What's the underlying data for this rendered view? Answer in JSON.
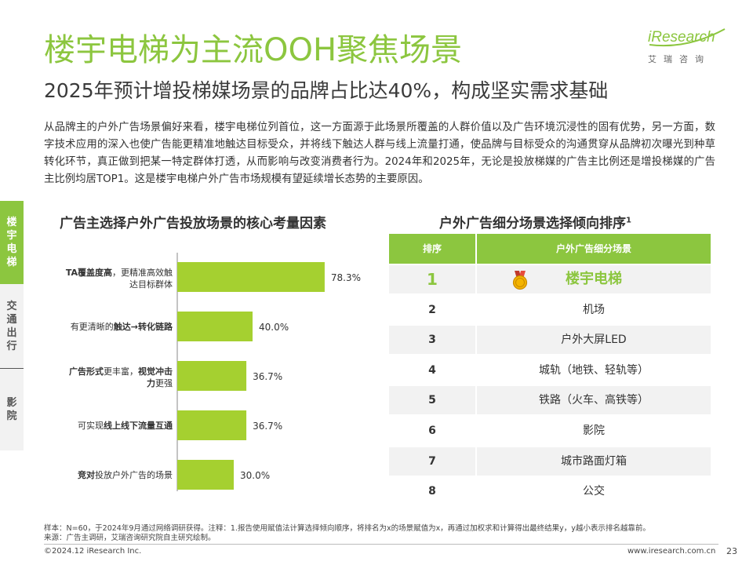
{
  "header": {
    "title": "楼宇电梯为主流OOH聚焦场景",
    "subtitle": "2025年预计增投梯媒场景的品牌占比达40%，构成坚实需求基础",
    "logo": "iResearch",
    "logo_sub": "艾瑞咨询"
  },
  "paragraph": "从品牌主的户外广告场景偏好来看，楼宇电梯位列首位，这一方面源于此场景所覆盖的人群价值以及广告环境沉浸性的固有优势，另一方面，数字技术应用的深入也使广告能更精准地触达目标受众，并将线下触达人群与线上流量打通，使品牌与目标受众的沟通贯穿从品牌初次曝光到种草转化环节，真正做到把某一特定群体打透，从而影响与改变消费者行为。2024年和2025年，无论是投放梯媒的广告主比例还是增投梯媒的广告主比例均居TOP1。这是楼宇电梯户外广告市场规模有望延续增长态势的主要原因。",
  "nav": {
    "items": [
      {
        "label": "楼宇电梯",
        "active": true
      },
      {
        "label": "交通出行",
        "active": false
      },
      {
        "label": "影院",
        "active": false
      }
    ]
  },
  "left_section": {
    "heading": "广告主选择户外广告投放场景的核心考量因素"
  },
  "chart_data": {
    "type": "bar",
    "orientation": "horizontal",
    "bar_color": "#a5d030",
    "xlim": [
      0,
      100
    ],
    "categories": [
      {
        "parts": [
          {
            "t": "TA覆盖度高",
            "b": true
          },
          {
            "t": "，更精准高效触",
            "b": false
          }
        ],
        "line2": [
          {
            "t": "达目标群体",
            "b": false
          }
        ]
      },
      {
        "parts": [
          {
            "t": "有更清晰的",
            "b": false
          },
          {
            "t": "触达→转化链路",
            "b": true
          }
        ],
        "line2": []
      },
      {
        "parts": [
          {
            "t": "广告形式",
            "b": true
          },
          {
            "t": "更丰富，",
            "b": false
          },
          {
            "t": "视觉冲击",
            "b": true
          }
        ],
        "line2": [
          {
            "t": "力",
            "b": true
          },
          {
            "t": "更强",
            "b": false
          }
        ]
      },
      {
        "parts": [
          {
            "t": "可实现",
            "b": false
          },
          {
            "t": "线上线下流量互通",
            "b": true
          }
        ],
        "line2": []
      },
      {
        "parts": [
          {
            "t": "竞对",
            "b": true
          },
          {
            "t": "投放户外广告的场景",
            "b": false
          }
        ],
        "line2": []
      }
    ],
    "values": [
      78.3,
      40.0,
      36.7,
      36.7,
      30.0
    ],
    "value_labels": [
      "78.3%",
      "40.0%",
      "36.7%",
      "36.7%",
      "30.0%"
    ]
  },
  "right_section": {
    "heading": "户外广告细分场景选择倾向排序",
    "heading_sup": "1"
  },
  "table": {
    "header_color": "#8cc63f",
    "columns": [
      "排序",
      "户外广告细分场景"
    ],
    "rows": [
      {
        "rank": "1",
        "scene": "楼宇电梯"
      },
      {
        "rank": "2",
        "scene": "机场"
      },
      {
        "rank": "3",
        "scene": "户外大屏LED"
      },
      {
        "rank": "4",
        "scene": "城轨（地铁、轻轨等）"
      },
      {
        "rank": "5",
        "scene": "铁路（火车、高铁等）"
      },
      {
        "rank": "6",
        "scene": "影院"
      },
      {
        "rank": "7",
        "scene": "城市路面灯箱"
      },
      {
        "rank": "8",
        "scene": "公交"
      }
    ]
  },
  "footer": {
    "note1": "样本：N=60，于2024年9月通过网络调研获得。注释：1.报告使用赋值法计算选择倾向顺序，将排名为x的场景赋值为x，再通过加权求和计算得出最终结果y，y越小表示排名越靠前。",
    "note2": "来源：广告主调研，艾瑞咨询研究院自主研究绘制。",
    "copyright": "©2024.12 iResearch Inc.",
    "website": "www.iresearch.com.cn",
    "page": "23"
  }
}
